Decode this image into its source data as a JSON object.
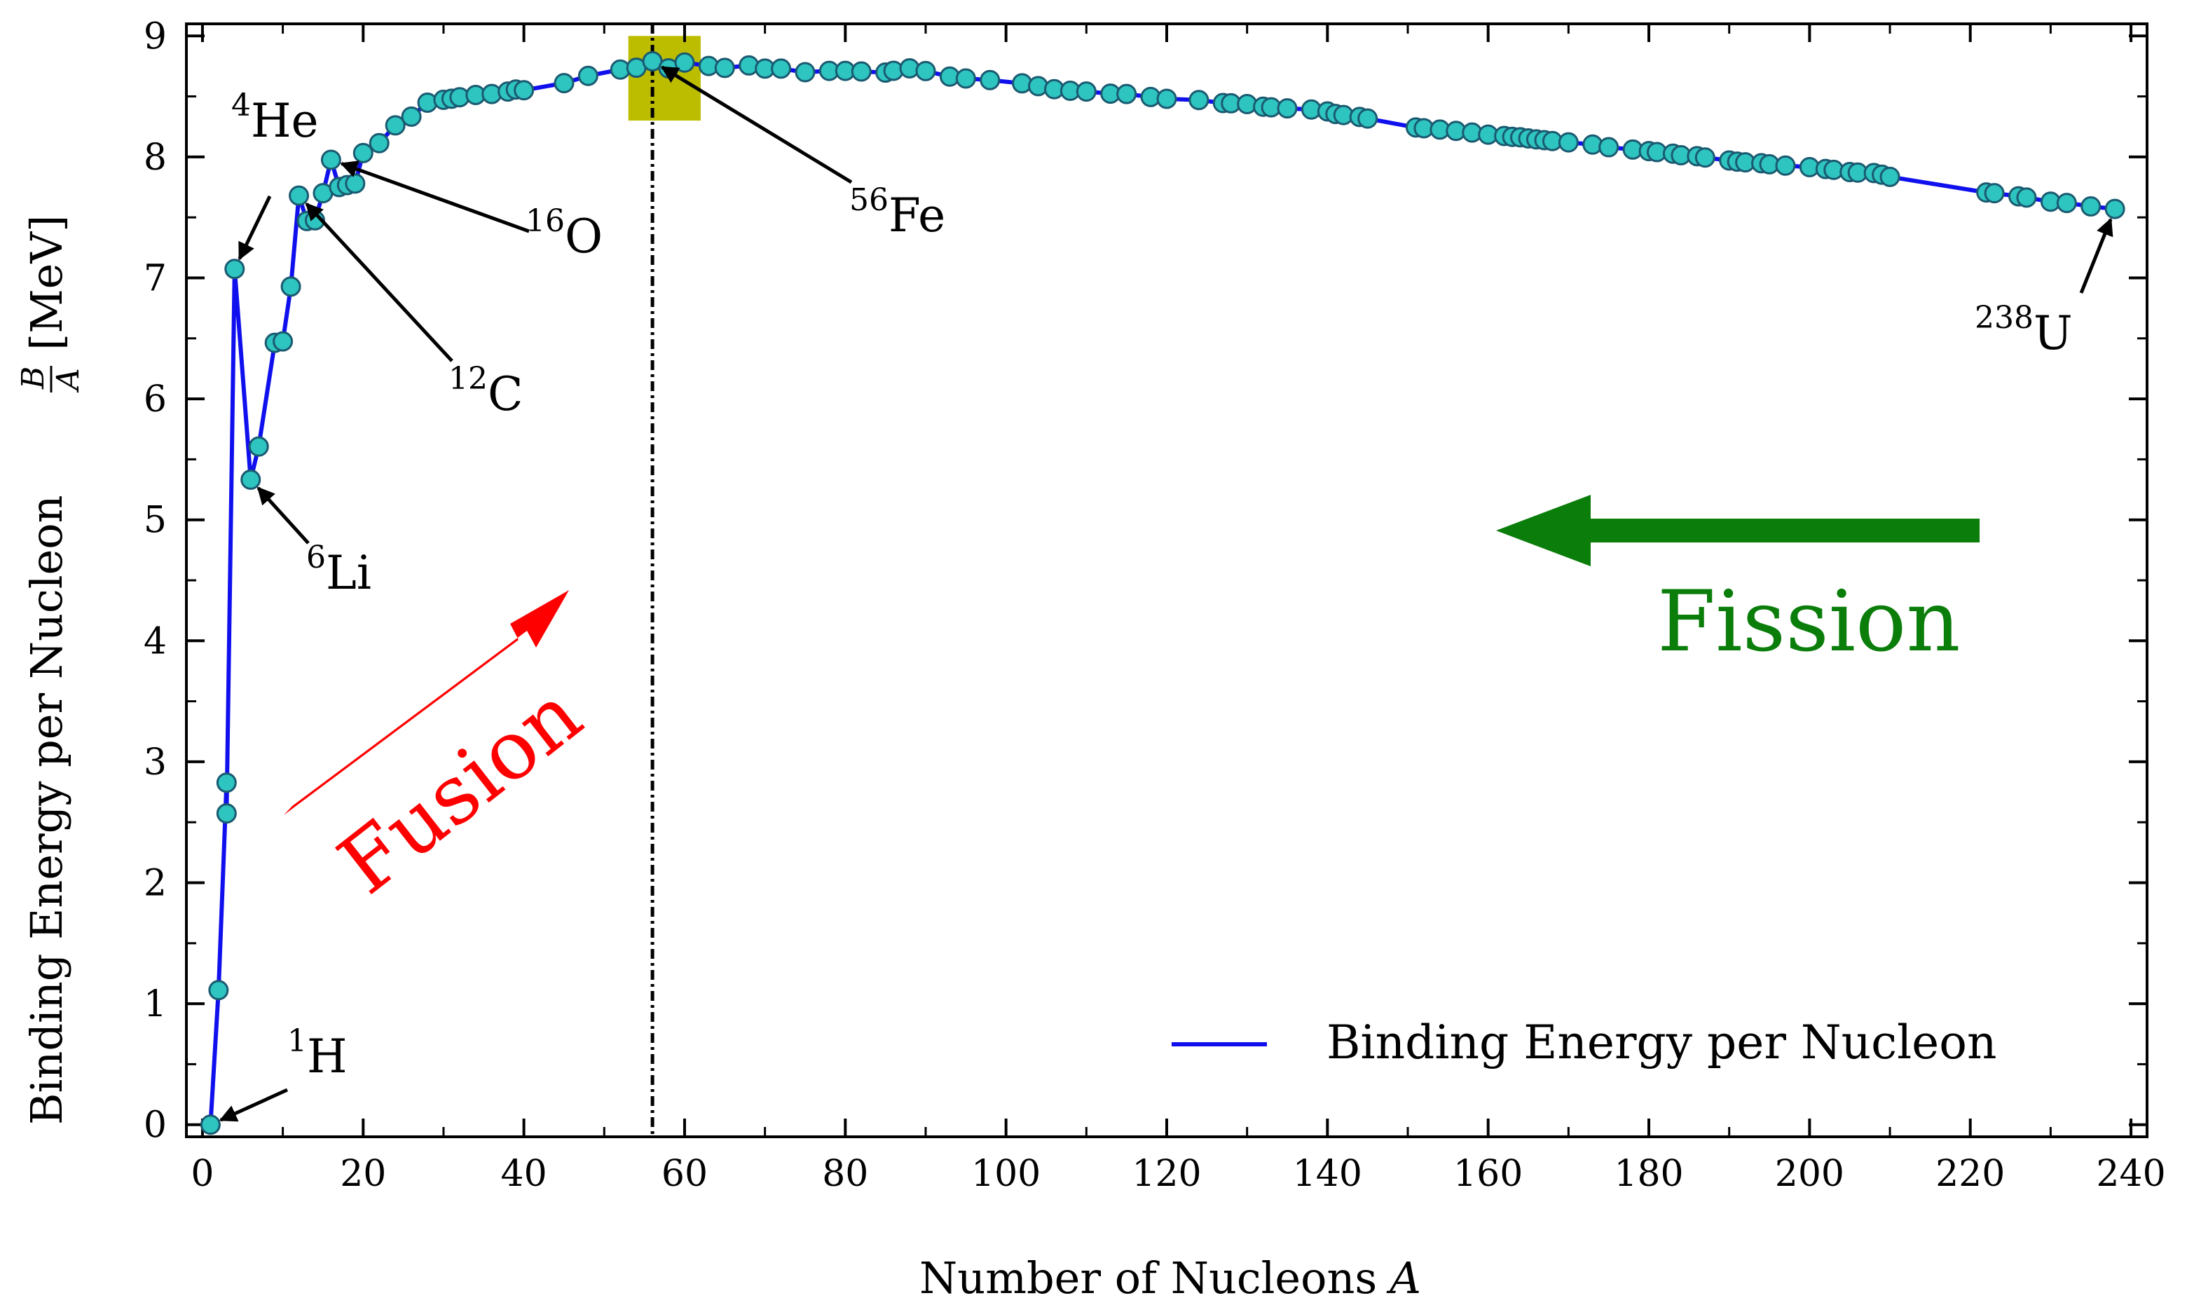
{
  "colors": {
    "line": "#1010ee",
    "marker_fill": "#2ec4c0",
    "marker_stroke": "#1a5a70",
    "highlight": "#bdbd00",
    "fusion": "#ff0000",
    "fission": "#0a7d0a"
  },
  "chart_data": {
    "type": "line",
    "title": "",
    "xlabel": "Number of Nucleons",
    "xlabel_var": "A",
    "ylabel": "Binding Energy per Nucleon",
    "ylabel_frac_num": "B",
    "ylabel_frac_den": "A",
    "ylabel_unit": "[MeV]",
    "xlim": [
      -2,
      242
    ],
    "ylim": [
      -0.1,
      9.1
    ],
    "xticks": [
      0,
      20,
      40,
      60,
      80,
      100,
      120,
      140,
      160,
      180,
      200,
      220,
      240
    ],
    "yticks": [
      0,
      1,
      2,
      3,
      4,
      5,
      6,
      7,
      8,
      9
    ],
    "grid": false,
    "legend_position": "bottom-right",
    "series": [
      {
        "name": "Binding Energy per Nucleon",
        "style": "line with circle markers",
        "x": [
          1,
          2,
          3,
          3,
          4,
          6,
          7,
          9,
          10,
          11,
          12,
          13,
          14,
          15,
          16,
          17,
          18,
          19,
          20,
          22,
          24,
          26,
          28,
          30,
          31,
          32,
          34,
          36,
          38,
          39,
          40,
          45,
          48,
          52,
          54,
          56,
          58,
          60,
          63,
          65,
          68,
          70,
          72,
          75,
          78,
          80,
          82,
          85,
          86,
          88,
          90,
          93,
          95,
          98,
          102,
          104,
          106,
          108,
          110,
          113,
          115,
          118,
          120,
          124,
          127,
          128,
          130,
          132,
          133,
          135,
          138,
          140,
          141,
          142,
          144,
          145,
          151,
          152,
          154,
          156,
          158,
          160,
          162,
          163,
          164,
          165,
          166,
          167,
          168,
          170,
          173,
          175,
          178,
          180,
          181,
          183,
          184,
          186,
          187,
          190,
          191,
          192,
          194,
          195,
          197,
          200,
          202,
          203,
          205,
          206,
          208,
          209,
          210,
          222,
          223,
          226,
          227,
          230,
          232,
          235,
          238
        ],
        "y": [
          0,
          1.112,
          2.827,
          2.573,
          7.074,
          5.332,
          5.606,
          6.463,
          6.475,
          6.928,
          7.68,
          7.47,
          7.476,
          7.7,
          7.976,
          7.751,
          7.767,
          7.78,
          8.032,
          8.114,
          8.261,
          8.333,
          8.448,
          8.472,
          8.481,
          8.493,
          8.512,
          8.52,
          8.54,
          8.557,
          8.551,
          8.61,
          8.67,
          8.722,
          8.737,
          8.79,
          8.732,
          8.78,
          8.752,
          8.736,
          8.756,
          8.73,
          8.73,
          8.7,
          8.711,
          8.711,
          8.706,
          8.697,
          8.712,
          8.732,
          8.71,
          8.664,
          8.648,
          8.635,
          8.608,
          8.585,
          8.56,
          8.547,
          8.54,
          8.523,
          8.52,
          8.495,
          8.48,
          8.47,
          8.445,
          8.443,
          8.437,
          8.415,
          8.41,
          8.401,
          8.392,
          8.376,
          8.355,
          8.346,
          8.33,
          8.317,
          8.243,
          8.237,
          8.226,
          8.215,
          8.201,
          8.184,
          8.173,
          8.166,
          8.162,
          8.153,
          8.145,
          8.138,
          8.131,
          8.12,
          8.102,
          8.08,
          8.061,
          8.048,
          8.04,
          8.027,
          8.014,
          8.006,
          7.995,
          7.97,
          7.961,
          7.955,
          7.948,
          7.939,
          7.928,
          7.915,
          7.9,
          7.893,
          7.875,
          7.87,
          7.867,
          7.853,
          7.835,
          7.706,
          7.7,
          7.674,
          7.664,
          7.63,
          7.619,
          7.591,
          7.57
        ]
      }
    ],
    "highlight_box": {
      "x": [
        53,
        62
      ],
      "y": [
        8.3,
        9.0
      ]
    },
    "reference_line": {
      "x": 56,
      "style": "dotted"
    },
    "annotations": [
      {
        "sup": "1",
        "label": "H",
        "x": 1,
        "y": 0
      },
      {
        "sup": "4",
        "label": "He",
        "x": 4,
        "y": 7.074
      },
      {
        "sup": "6",
        "label": "Li",
        "x": 6,
        "y": 5.332
      },
      {
        "sup": "12",
        "label": "C",
        "x": 12,
        "y": 7.68
      },
      {
        "sup": "16",
        "label": "O",
        "x": 16,
        "y": 7.976
      },
      {
        "sup": "56",
        "label": "Fe",
        "x": 56,
        "y": 8.79
      },
      {
        "sup": "238",
        "label": "U",
        "x": 238,
        "y": 7.57
      }
    ],
    "process_labels": {
      "fusion": "Fusion",
      "fission": "Fission"
    }
  }
}
